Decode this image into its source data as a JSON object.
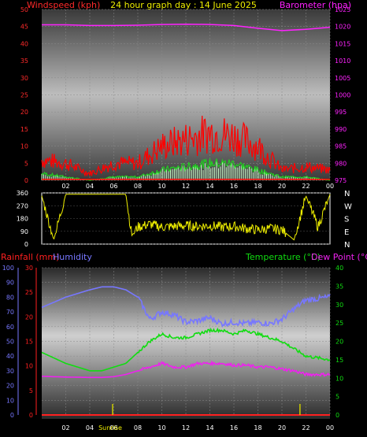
{
  "title": "24 hour graph day : 14 June 2025",
  "colors": {
    "wind": "#ff2a2a",
    "gust_red": "#ff0000",
    "wind_green": "#22cc22",
    "wind_light": "#ccffcc",
    "baro": "#ff22ff",
    "dir": "#eeee00",
    "rain": "#ff2020",
    "humidity": "#7777ff",
    "temperature": "#11dd11",
    "dewpoint": "#ee22ee",
    "axis_gray": "#888888",
    "sun_marker": "#cccc00"
  },
  "chart_data": [
    {
      "type": "line",
      "panel": "wind-baro",
      "title": "24 hour graph day : 14 June 2025",
      "ylabel": "Windspeed (kph)",
      "y2label": "Barometer (hpa)",
      "x_ticks": [
        "02",
        "04",
        "06",
        "08",
        "10",
        "12",
        "14",
        "16",
        "18",
        "20",
        "22",
        "00"
      ],
      "y_ticks": [
        "0",
        "5",
        "10",
        "15",
        "20",
        "25",
        "30",
        "35",
        "40",
        "45",
        "50"
      ],
      "y2_ticks": [
        "975",
        "980",
        "985",
        "990",
        "995",
        "1000",
        "1005",
        "1010",
        "1015",
        "1020",
        "1025"
      ],
      "ylim": [
        0,
        50
      ],
      "y2lim": [
        975,
        1025
      ],
      "x": [
        0,
        2,
        4,
        6,
        8,
        10,
        12,
        14,
        16,
        18,
        20,
        22,
        24
      ],
      "series": [
        {
          "name": "Barometer",
          "values": [
            1020.5,
            1020.5,
            1020.3,
            1020.3,
            1020.4,
            1020.6,
            1020.7,
            1020.6,
            1020.3,
            1019.5,
            1018.8,
            1019.2,
            1019.8
          ]
        },
        {
          "name": "Gust",
          "values": [
            6,
            5,
            2,
            5,
            5,
            10,
            12,
            14,
            13,
            10,
            3,
            4,
            3
          ]
        },
        {
          "name": "Wind",
          "values": [
            2,
            1,
            0,
            1,
            1,
            3,
            4,
            5,
            5,
            3,
            1,
            1,
            0
          ]
        }
      ]
    },
    {
      "type": "line",
      "panel": "wind-direction",
      "x_ticks": [
        "02",
        "04",
        "06",
        "08",
        "10",
        "12",
        "14",
        "16",
        "18",
        "20",
        "22",
        "00"
      ],
      "y_ticks": [
        "0",
        "90",
        "180",
        "270",
        "360"
      ],
      "ylim": [
        0,
        360
      ],
      "compass": [
        "N",
        "W",
        "S",
        "E",
        "N"
      ],
      "x": [
        0,
        1,
        2,
        3,
        4,
        5,
        6,
        7,
        7.5,
        8,
        9,
        10,
        11,
        12,
        13,
        14,
        15,
        16,
        17,
        18,
        19,
        20,
        21,
        22,
        23,
        24
      ],
      "values": [
        340,
        30,
        350,
        350,
        350,
        350,
        350,
        350,
        60,
        120,
        140,
        120,
        125,
        130,
        125,
        130,
        120,
        125,
        110,
        100,
        110,
        100,
        30,
        340,
        120,
        350
      ]
    },
    {
      "type": "line",
      "panel": "temperature-humidity",
      "ylabel": "Rainfall (mm)",
      "y2label": "Humidity",
      "y3label": "Temperature (°C)",
      "y4label": "Dew Point (°C)",
      "x_ticks": [
        "02",
        "04",
        "06",
        "08",
        "10",
        "12",
        "14",
        "16",
        "18",
        "20",
        "22",
        "00"
      ],
      "annotation": "Sunrise",
      "humidity_ticks": [
        "0",
        "10",
        "20",
        "30",
        "40",
        "50",
        "60",
        "70",
        "80",
        "90",
        "100"
      ],
      "rain_ticks": [
        "0",
        "5",
        "10",
        "15",
        "20",
        "25",
        "30"
      ],
      "temp_ticks": [
        "0",
        "5",
        "10",
        "15",
        "20",
        "25",
        "30",
        "35",
        "40"
      ],
      "humidity_lim": [
        0,
        100
      ],
      "rain_lim": [
        0,
        30
      ],
      "temp_lim": [
        0,
        40
      ],
      "x": [
        0,
        2,
        4,
        5,
        6,
        7,
        8,
        9,
        10,
        11,
        12,
        13,
        14,
        15,
        16,
        17,
        18,
        19,
        20,
        21,
        22,
        24
      ],
      "series": [
        {
          "name": "Humidity",
          "values": [
            73,
            80,
            85,
            87,
            87,
            85,
            80,
            65,
            70,
            68,
            63,
            64,
            66,
            62,
            63,
            62,
            63,
            62,
            65,
            72,
            78,
            80
          ]
        },
        {
          "name": "Temperature",
          "values": [
            17,
            14,
            12,
            12,
            13,
            14,
            17,
            20,
            22,
            21,
            21,
            22,
            23,
            23,
            22,
            23,
            22,
            21,
            20,
            18,
            16,
            15
          ]
        },
        {
          "name": "Dew Point",
          "values": [
            10.5,
            10.3,
            10.2,
            10.2,
            10.4,
            11,
            12,
            13,
            14,
            13,
            13,
            14,
            14,
            14,
            13.5,
            13.5,
            13,
            13,
            12.5,
            12,
            11,
            11
          ]
        },
        {
          "name": "Rainfall",
          "values": [
            0,
            0,
            0,
            0,
            0,
            0,
            0,
            0,
            0,
            0,
            0,
            0,
            0,
            0,
            0,
            0,
            0,
            0,
            0,
            0,
            0,
            0
          ]
        }
      ]
    }
  ]
}
